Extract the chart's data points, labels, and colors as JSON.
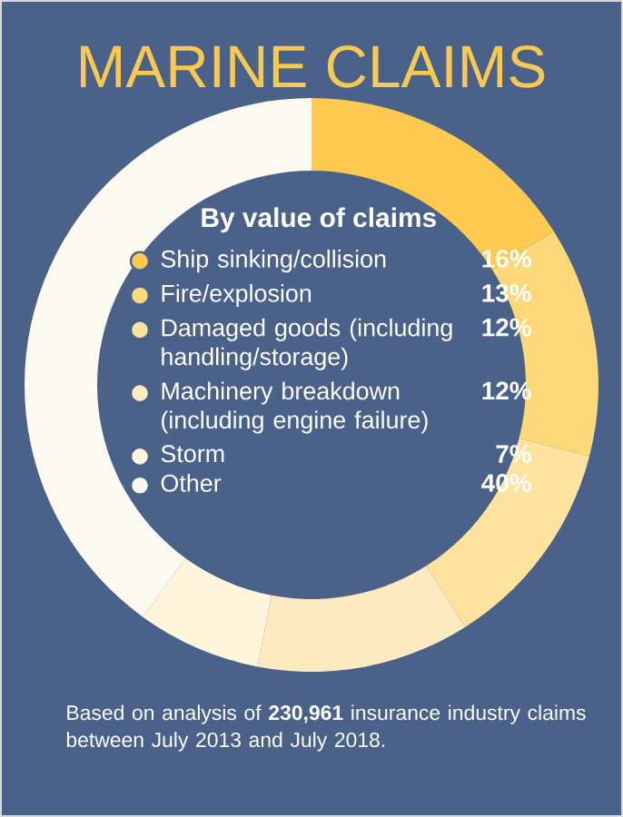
{
  "chart_data": {
    "type": "donut",
    "title": "MARINE CLAIMS",
    "legend_title": "By value of claims",
    "categories": [
      "Ship sinking/collision",
      "Fire/explosion",
      "Damaged goods (including handling/storage)",
      "Machinery breakdown (including engine failure)",
      "Storm",
      "Other"
    ],
    "values": [
      16,
      13,
      12,
      12,
      7,
      40
    ],
    "value_labels": [
      "16%",
      "13%",
      "12%",
      "12%",
      "7%",
      "40%"
    ],
    "colors": [
      "#fdc94f",
      "#fdd878",
      "#fee39e",
      "#feeac0",
      "#fff5dd",
      "#fcfaf0"
    ],
    "legend": "center",
    "annotations": [
      "Based on analysis of **230,961** insurance industry claims between July 2013 and July 2018."
    ]
  }
}
